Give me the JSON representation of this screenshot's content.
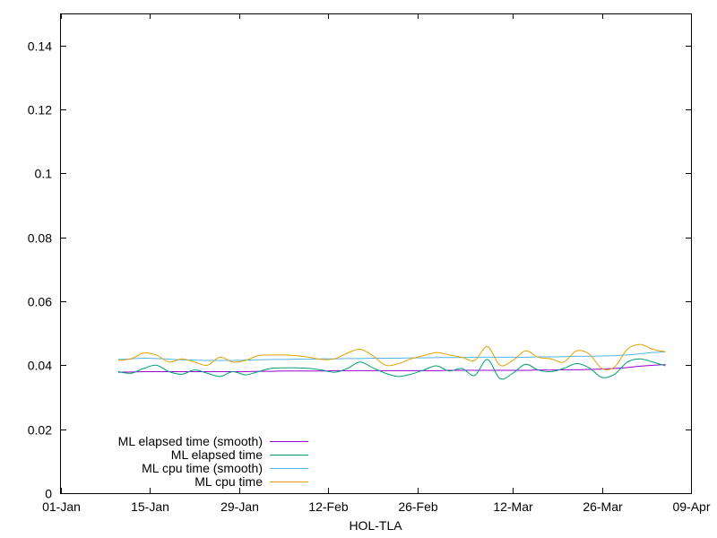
{
  "chart_data": {
    "type": "line",
    "xlabel": "HOL-TLA",
    "ylabel": "",
    "title": "",
    "xlim": [
      "2024-01-01",
      "2024-04-09"
    ],
    "ylim": [
      0,
      0.15
    ],
    "x_ticks": [
      "01-Jan",
      "15-Jan",
      "29-Jan",
      "12-Feb",
      "26-Feb",
      "12-Mar",
      "26-Mar",
      "09-Apr"
    ],
    "x_tick_dates": [
      "2024-01-01",
      "2024-01-15",
      "2024-01-29",
      "2024-02-12",
      "2024-02-26",
      "2024-03-12",
      "2024-03-26",
      "2024-04-09"
    ],
    "y_ticks": [
      "0",
      "0.02",
      "0.04",
      "0.06",
      "0.08",
      "0.1",
      "0.12",
      "0.14"
    ],
    "y_tick_values": [
      0,
      0.02,
      0.04,
      0.06,
      0.08,
      0.1,
      0.12,
      0.14
    ],
    "grid": false,
    "legend_position": "bottom-left",
    "x": [
      "2024-01-10",
      "2024-01-12",
      "2024-01-14",
      "2024-01-16",
      "2024-01-18",
      "2024-01-20",
      "2024-01-22",
      "2024-01-24",
      "2024-01-26",
      "2024-01-28",
      "2024-01-30",
      "2024-02-01",
      "2024-02-03",
      "2024-02-05",
      "2024-02-07",
      "2024-02-09",
      "2024-02-11",
      "2024-02-13",
      "2024-02-15",
      "2024-02-17",
      "2024-02-19",
      "2024-02-21",
      "2024-02-23",
      "2024-02-25",
      "2024-02-27",
      "2024-02-29",
      "2024-03-02",
      "2024-03-04",
      "2024-03-06",
      "2024-03-08",
      "2024-03-10",
      "2024-03-12",
      "2024-03-14",
      "2024-03-16",
      "2024-03-18",
      "2024-03-20",
      "2024-03-22",
      "2024-03-24",
      "2024-03-26",
      "2024-03-28",
      "2024-03-30",
      "2024-04-01",
      "2024-04-03",
      "2024-04-05"
    ],
    "series": [
      {
        "name": "ML elapsed time (smooth)",
        "color": "#9400d3",
        "values": [
          0.0378,
          0.0379,
          0.038,
          0.038,
          0.038,
          0.038,
          0.038,
          0.038,
          0.038,
          0.038,
          0.038,
          0.0381,
          0.0381,
          0.0382,
          0.0382,
          0.0382,
          0.0382,
          0.0383,
          0.0383,
          0.0383,
          0.0383,
          0.0383,
          0.0383,
          0.0383,
          0.0383,
          0.0383,
          0.0384,
          0.0384,
          0.0384,
          0.0384,
          0.0384,
          0.0384,
          0.0384,
          0.0385,
          0.0385,
          0.0386,
          0.0386,
          0.0387,
          0.0388,
          0.039,
          0.0393,
          0.0397,
          0.04,
          0.0402
        ]
      },
      {
        "name": "ML elapsed time",
        "color": "#009e73",
        "values": [
          0.038,
          0.0375,
          0.039,
          0.04,
          0.038,
          0.0372,
          0.0385,
          0.0375,
          0.0365,
          0.038,
          0.037,
          0.038,
          0.039,
          0.0392,
          0.0392,
          0.039,
          0.0385,
          0.0378,
          0.039,
          0.041,
          0.0392,
          0.0375,
          0.0365,
          0.0372,
          0.0385,
          0.0398,
          0.0382,
          0.039,
          0.0368,
          0.0418,
          0.0358,
          0.0375,
          0.0403,
          0.0385,
          0.038,
          0.039,
          0.0405,
          0.0392,
          0.0362,
          0.0372,
          0.041,
          0.042,
          0.041,
          0.0398
        ]
      },
      {
        "name": "ML cpu time (smooth)",
        "color": "#56b4e9",
        "values": [
          0.0418,
          0.042,
          0.0422,
          0.0421,
          0.0419,
          0.0417,
          0.0416,
          0.0415,
          0.0415,
          0.0415,
          0.0416,
          0.0417,
          0.0418,
          0.0418,
          0.0419,
          0.0419,
          0.042,
          0.042,
          0.0421,
          0.0421,
          0.0422,
          0.0422,
          0.0422,
          0.0423,
          0.0423,
          0.0424,
          0.0424,
          0.0424,
          0.0425,
          0.0425,
          0.0425,
          0.0425,
          0.0425,
          0.0426,
          0.0426,
          0.0427,
          0.0428,
          0.0428,
          0.0429,
          0.043,
          0.0432,
          0.0436,
          0.044,
          0.0442
        ]
      },
      {
        "name": "ML cpu time",
        "color": "#e69f00",
        "values": [
          0.0415,
          0.042,
          0.0438,
          0.0432,
          0.041,
          0.042,
          0.041,
          0.04,
          0.0425,
          0.041,
          0.0415,
          0.043,
          0.0432,
          0.0432,
          0.043,
          0.0425,
          0.0418,
          0.042,
          0.0438,
          0.045,
          0.043,
          0.04,
          0.0405,
          0.042,
          0.043,
          0.044,
          0.0432,
          0.0425,
          0.0415,
          0.0458,
          0.04,
          0.0415,
          0.0445,
          0.0425,
          0.042,
          0.041,
          0.0445,
          0.0435,
          0.039,
          0.0395,
          0.045,
          0.0465,
          0.045,
          0.0442
        ]
      }
    ]
  }
}
